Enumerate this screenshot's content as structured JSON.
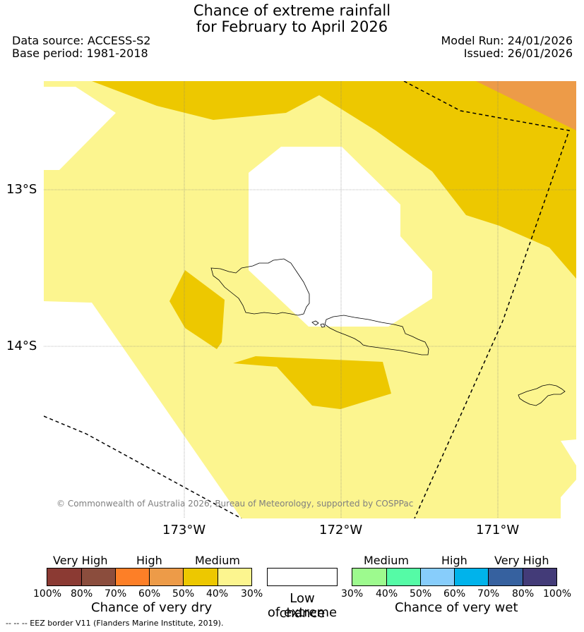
{
  "header": {
    "title_line1": "Chance of extreme rainfall",
    "title_line2": "for February to April 2026",
    "data_source": "Data source: ACCESS-S2",
    "base_period": "Base period: 1981-2018",
    "model_run": "Model Run: 24/01/2026",
    "issued": "Issued: 26/01/2026"
  },
  "map": {
    "lat_labels": [
      "13°S",
      "14°S"
    ],
    "lon_labels": [
      "173°W",
      "172°W",
      "171°W"
    ],
    "credit": "© Commonwealth of Australia 2026, Bureau of Meteorology, supported by COSPPac",
    "colors": {
      "medium_dry_30_40": "#fcf58f",
      "medium_dry_40_50": "#edc800",
      "high_dry_50_60": "#ed9b48",
      "low": "#ffffff"
    }
  },
  "legend": {
    "dry": {
      "groups": [
        "Very High",
        "High",
        "Medium"
      ],
      "ticks": [
        "100%",
        "80%",
        "70%",
        "60%",
        "50%",
        "40%",
        "30%"
      ],
      "caption": "Chance of very dry",
      "colors": [
        "#8b3a33",
        "#8b4d3d",
        "#fd7f27",
        "#ed9b48",
        "#edc800",
        "#fcf58f"
      ]
    },
    "low": {
      "caption_line1": "Low chance",
      "caption_line2": "of extreme",
      "color": "#ffffff"
    },
    "wet": {
      "groups": [
        "Medium",
        "High",
        "Very High"
      ],
      "ticks": [
        "30%",
        "40%",
        "50%",
        "60%",
        "70%",
        "80%",
        "100%"
      ],
      "caption": "Chance of very wet",
      "colors": [
        "#9dfa8e",
        "#55fba6",
        "#87cdfb",
        "#00b3eb",
        "#36619f",
        "#433b78"
      ]
    }
  },
  "footnote": "-- -- -- EEZ border V11 (Flanders Marine Institute, 2019)."
}
